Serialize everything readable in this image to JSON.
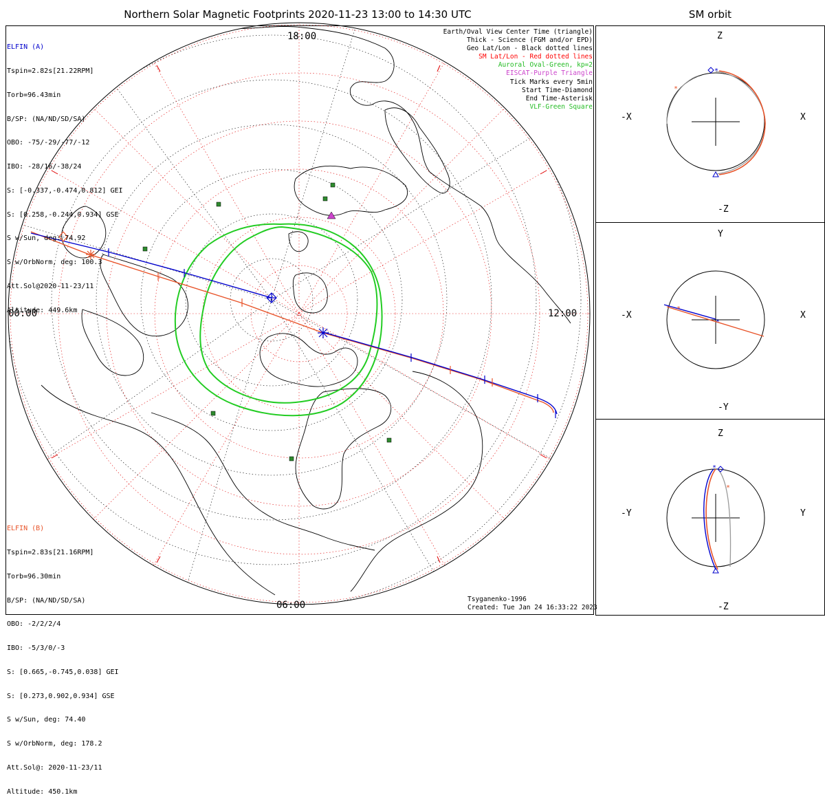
{
  "title": "Northern Solar Magnetic Footprints 2020-11-23 13:00 to 14:30 UTC",
  "right_title": "SM orbit",
  "map": {
    "mlt_labels": {
      "top": "18:00",
      "left": "00:00",
      "right": "12:00",
      "bottom": "06:00"
    }
  },
  "elfin_a": {
    "name": "ELFIN (A)",
    "color": "#0000cc",
    "lines": [
      "Tspin=2.82s[21.22RPM]",
      "Torb=96.43min",
      "B/SP: (NA/ND/SD/SA)",
      "OBO: -75/-29/-77/-12",
      "IBO: -28/16/-38/24",
      "S: [-0.337,-0.474,0.812] GEI",
      "S: [0.258,-0.244,0.934] GSE",
      "S w/Sun, deg: 74.92",
      "S w/OrbNorm, deg: 100.3",
      "Att.Sol@2020-11-23/11",
      "Altitude: 449.6km"
    ]
  },
  "elfin_b": {
    "name": "ELFIN (B)",
    "color": "#e8542a",
    "lines": [
      "Tspin=2.83s[21.16RPM]",
      "Torb=96.30min",
      "B/SP: (NA/ND/SD/SA)",
      "OBO: -2/2/2/4",
      "IBO: -5/3/0/-3",
      "S: [0.665,-0.745,0.038] GEI",
      "S: [0.273,0.902,0.934] GSE",
      "S w/Sun, deg: 74.40",
      "S w/OrbNorm, deg: 178.2",
      "Att.Sol@: 2020-11-23/11",
      "Altitude: 450.1km"
    ]
  },
  "legend": [
    {
      "text": "Earth/Oval View Center Time (triangle)",
      "color": "#000000"
    },
    {
      "text": "Thick - Science (FGM and/or EPD)",
      "color": "#000000"
    },
    {
      "text": "Geo Lat/Lon - Black dotted lines",
      "color": "#000000"
    },
    {
      "text": "SM Lat/Lon - Red dotted lines",
      "color": "#ff0000"
    },
    {
      "text": "Auroral Oval-Green, kp=2",
      "color": "#22bb22"
    },
    {
      "text": "EISCAT-Purple Triangle",
      "color": "#cc44cc"
    },
    {
      "text": "Tick Marks every 5min",
      "color": "#000000"
    },
    {
      "text": "Start Time-Diamond",
      "color": "#000000"
    },
    {
      "text": "End Time-Asterisk",
      "color": "#000000"
    },
    {
      "text": "VLF-Green Square",
      "color": "#22bb22"
    }
  ],
  "credit": {
    "line1": "Tsyganenko-1996",
    "line2": "Created: Tue Jan 24 16:33:22 2023"
  },
  "panels": [
    {
      "top": "Z",
      "bottom": "-Z",
      "left": "-X",
      "right": "X"
    },
    {
      "top": "Y",
      "bottom": "-Y",
      "left": "-X",
      "right": "X"
    },
    {
      "top": "Z",
      "bottom": "-Z",
      "left": "-Y",
      "right": "Y"
    }
  ]
}
